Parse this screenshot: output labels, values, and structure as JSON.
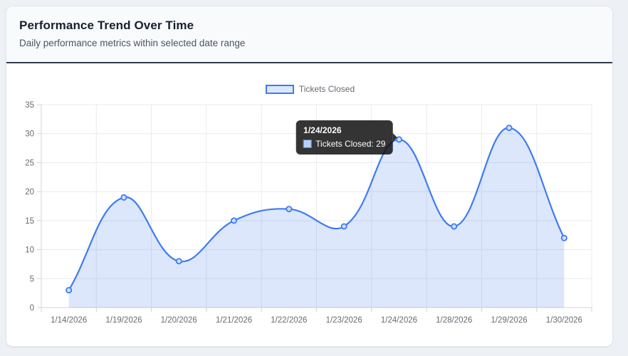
{
  "header": {
    "title": "Performance Trend Over Time",
    "subtitle": "Daily performance metrics within selected date range"
  },
  "chart_data": {
    "type": "line",
    "title": "Performance Trend Over Time",
    "categories": [
      "1/14/2026",
      "1/19/2026",
      "1/20/2026",
      "1/21/2026",
      "1/22/2026",
      "1/23/2026",
      "1/24/2026",
      "1/28/2026",
      "1/29/2026",
      "1/30/2026"
    ],
    "series": [
      {
        "name": "Tickets Closed",
        "values": [
          3,
          19,
          8,
          15,
          17,
          14,
          29,
          14,
          31,
          12
        ]
      }
    ],
    "xlabel": "",
    "ylabel": "",
    "ylim": [
      0,
      35
    ],
    "ytick_step": 5,
    "grid": true,
    "area_fill": true,
    "smooth_tension": 0.4,
    "legend_position": "top",
    "colors": {
      "line": "#3e7cf0",
      "area_fill": "rgba(62,124,240,0.18)",
      "point_fill": "#cfe0f8",
      "legend_fill": "#dbe7fb",
      "grid": "#e9ebef",
      "axis": "#cfd4da",
      "tick_label": "#666b73",
      "tooltip_bg": "rgba(17,17,17,0.85)",
      "tooltip_swatch_fill": "#b9d1f8"
    }
  },
  "tooltip": {
    "title": "1/24/2026",
    "value_text": "Tickets Closed: 29",
    "point_index": 6
  }
}
